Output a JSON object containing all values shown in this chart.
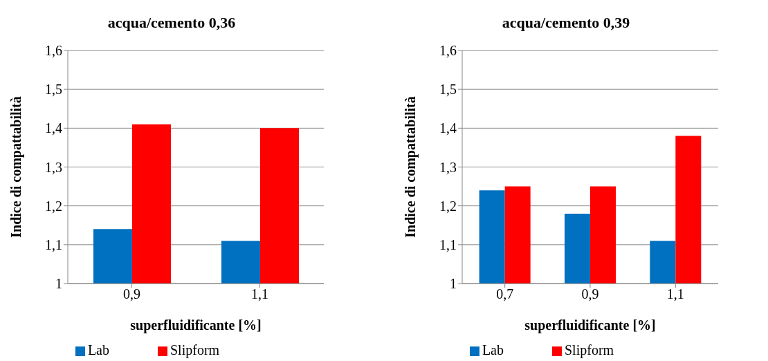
{
  "chart_data": [
    {
      "type": "bar",
      "title": "acqua/cemento 0,36",
      "xlabel": "superfluidificante [%]",
      "ylabel": "Indice di compattabilità",
      "categories": [
        "0,9",
        "1,1"
      ],
      "series": [
        {
          "name": "Lab",
          "color": "#0070c0",
          "values": [
            1.14,
            1.11
          ]
        },
        {
          "name": "Slipform",
          "color": "#ff0000",
          "values": [
            1.41,
            1.4
          ]
        }
      ],
      "ylim": [
        1,
        1.6
      ],
      "yticks": [
        1,
        {
          "value": 1.1,
          "label": "1,1"
        },
        {
          "value": 1.2,
          "label": "1,2"
        },
        {
          "value": 1.3,
          "label": "1,3"
        },
        {
          "value": 1.4,
          "label": "1,4"
        },
        {
          "value": 1.5,
          "label": "1,5"
        },
        {
          "value": 1.6,
          "label": "1,6"
        }
      ],
      "grid": "y",
      "legend": "bottom"
    },
    {
      "type": "bar",
      "title": "acqua/cemento 0,39",
      "xlabel": "superfluidificante [%]",
      "ylabel": "Indice di compattabilità",
      "categories": [
        "0,7",
        "0,9",
        "1,1"
      ],
      "series": [
        {
          "name": "Lab",
          "color": "#0070c0",
          "values": [
            1.24,
            1.18,
            1.11
          ]
        },
        {
          "name": "Slipform",
          "color": "#ff0000",
          "values": [
            1.25,
            1.25,
            1.38
          ]
        }
      ],
      "ylim": [
        1,
        1.6
      ],
      "yticks": [
        1,
        {
          "value": 1.1,
          "label": "1,1"
        },
        {
          "value": 1.2,
          "label": "1,2"
        },
        {
          "value": 1.3,
          "label": "1,3"
        },
        {
          "value": 1.4,
          "label": "1,4"
        },
        {
          "value": 1.5,
          "label": "1,5"
        },
        {
          "value": 1.6,
          "label": "1,6"
        }
      ],
      "grid": "y",
      "legend": "bottom"
    }
  ]
}
